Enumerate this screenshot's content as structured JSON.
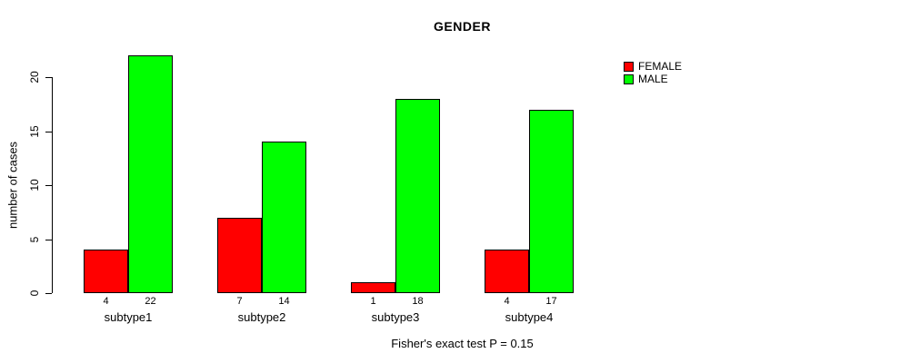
{
  "chart_data": {
    "type": "bar",
    "title": "GENDER",
    "ylabel": "number of cases",
    "xlabel": "",
    "categories": [
      "subtype1",
      "subtype2",
      "subtype3",
      "subtype4"
    ],
    "series": [
      {
        "name": "FEMALE",
        "color": "#ff0000",
        "values": [
          4,
          7,
          1,
          4
        ]
      },
      {
        "name": "MALE",
        "color": "#00ff00",
        "values": [
          22,
          14,
          18,
          17
        ]
      }
    ],
    "yticks": [
      0,
      5,
      10,
      15,
      20
    ],
    "ylim": [
      0,
      23
    ],
    "bar_value_labels": [
      [
        "4",
        "22"
      ],
      [
        "7",
        "14"
      ],
      [
        "1",
        "18"
      ],
      [
        "4",
        "17"
      ]
    ],
    "legend_position": "top-right",
    "grid": false,
    "caption": "Fisher's exact test P = 0.15"
  }
}
